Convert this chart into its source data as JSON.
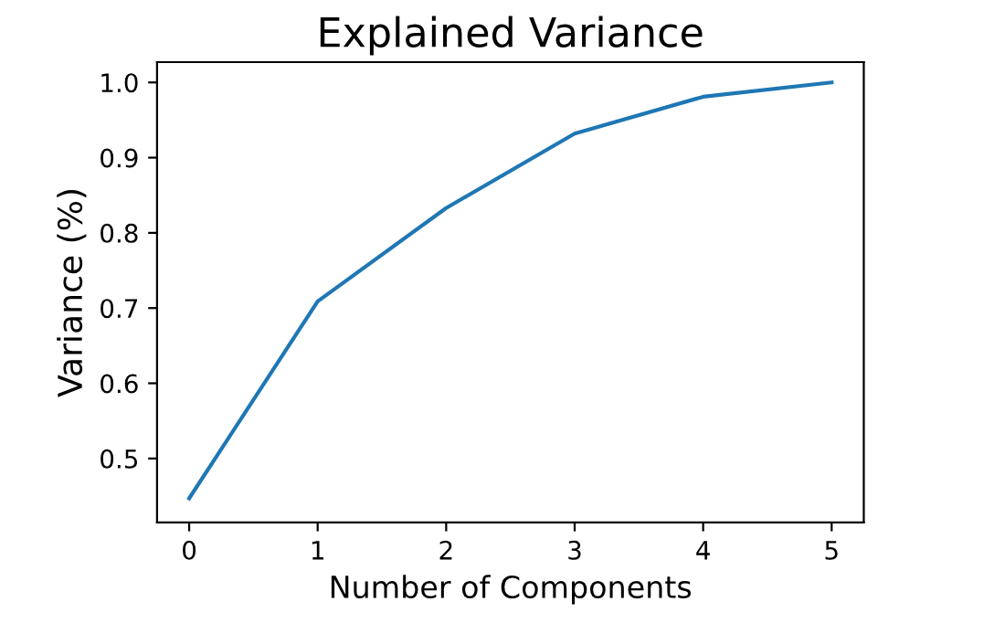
{
  "chart_data": {
    "type": "line",
    "title": "Explained Variance",
    "xlabel": "Number of Components",
    "ylabel": "Variance (%)",
    "x": [
      0,
      1,
      2,
      3,
      4,
      5
    ],
    "series": [
      {
        "color": "#1f77b4",
        "values": [
          0.447,
          0.709,
          0.833,
          0.932,
          0.981,
          1.0
        ]
      }
    ],
    "xlim": [
      -0.25,
      5.25
    ],
    "xticks": [
      0,
      1,
      2,
      3,
      4,
      5
    ],
    "ylim": [
      0.415,
      1.027
    ],
    "yticks": [
      0.5,
      0.6,
      0.7,
      0.8,
      0.9,
      {
        "value": 1,
        "label": "1.0"
      }
    ],
    "grid": false,
    "legend": false,
    "marker": "none",
    "line_style": "solid"
  }
}
